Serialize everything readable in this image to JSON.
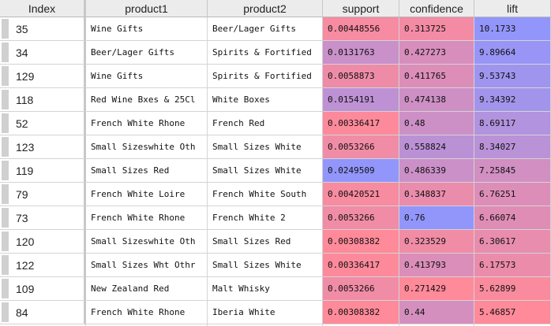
{
  "headers": [
    "Index",
    "product1",
    "product2",
    "support",
    "confidence",
    "lift"
  ],
  "rows": [
    {
      "index": "35",
      "product1": "Wine Gifts",
      "product2": "Beer/Lager Gifts",
      "support": "0.00448556",
      "confidence": "0.313725",
      "lift": "10.1733"
    },
    {
      "index": "34",
      "product1": "Beer/Lager Gifts",
      "product2": "Spirits & Fortified",
      "support": "0.0131763",
      "confidence": "0.427273",
      "lift": "9.89664"
    },
    {
      "index": "129",
      "product1": "Wine Gifts",
      "product2": "Spirits & Fortified",
      "support": "0.0058873",
      "confidence": "0.411765",
      "lift": "9.53743"
    },
    {
      "index": "118",
      "product1": "Red Wine Bxes & 25Cl",
      "product2": "White Boxes",
      "support": "0.0154191",
      "confidence": "0.474138",
      "lift": "9.34392"
    },
    {
      "index": "52",
      "product1": "French White Rhone",
      "product2": "French Red",
      "support": "0.00336417",
      "confidence": "0.48",
      "lift": "8.69117"
    },
    {
      "index": "123",
      "product1": "Small Sizeswhite Oth",
      "product2": "Small Sizes White",
      "support": "0.0053266",
      "confidence": "0.558824",
      "lift": "8.34027"
    },
    {
      "index": "119",
      "product1": "Small Sizes Red",
      "product2": "Small Sizes White",
      "support": "0.0249509",
      "confidence": "0.486339",
      "lift": "7.25845"
    },
    {
      "index": "79",
      "product1": "French White Loire",
      "product2": "French White South",
      "support": "0.00420521",
      "confidence": "0.348837",
      "lift": "6.76251"
    },
    {
      "index": "73",
      "product1": "French White Rhone",
      "product2": "French White 2",
      "support": "0.0053266",
      "confidence": "0.76",
      "lift": "6.66074"
    },
    {
      "index": "120",
      "product1": "Small Sizeswhite Oth",
      "product2": "Small Sizes Red",
      "support": "0.00308382",
      "confidence": "0.323529",
      "lift": "6.30617"
    },
    {
      "index": "122",
      "product1": "Small Sizes Wht Othr",
      "product2": "Small Sizes White",
      "support": "0.00336417",
      "confidence": "0.413793",
      "lift": "6.17573"
    },
    {
      "index": "109",
      "product1": "New Zealand Red",
      "product2": "Malt Whisky",
      "support": "0.0053266",
      "confidence": "0.271429",
      "lift": "5.62899"
    },
    {
      "index": "84",
      "product1": "French White Rhone",
      "product2": "Iberia White",
      "support": "0.00308382",
      "confidence": "0.44",
      "lift": "5.46857"
    }
  ],
  "heatmap_colors": {
    "low": "#ff8a99",
    "high": "#9296fb"
  }
}
